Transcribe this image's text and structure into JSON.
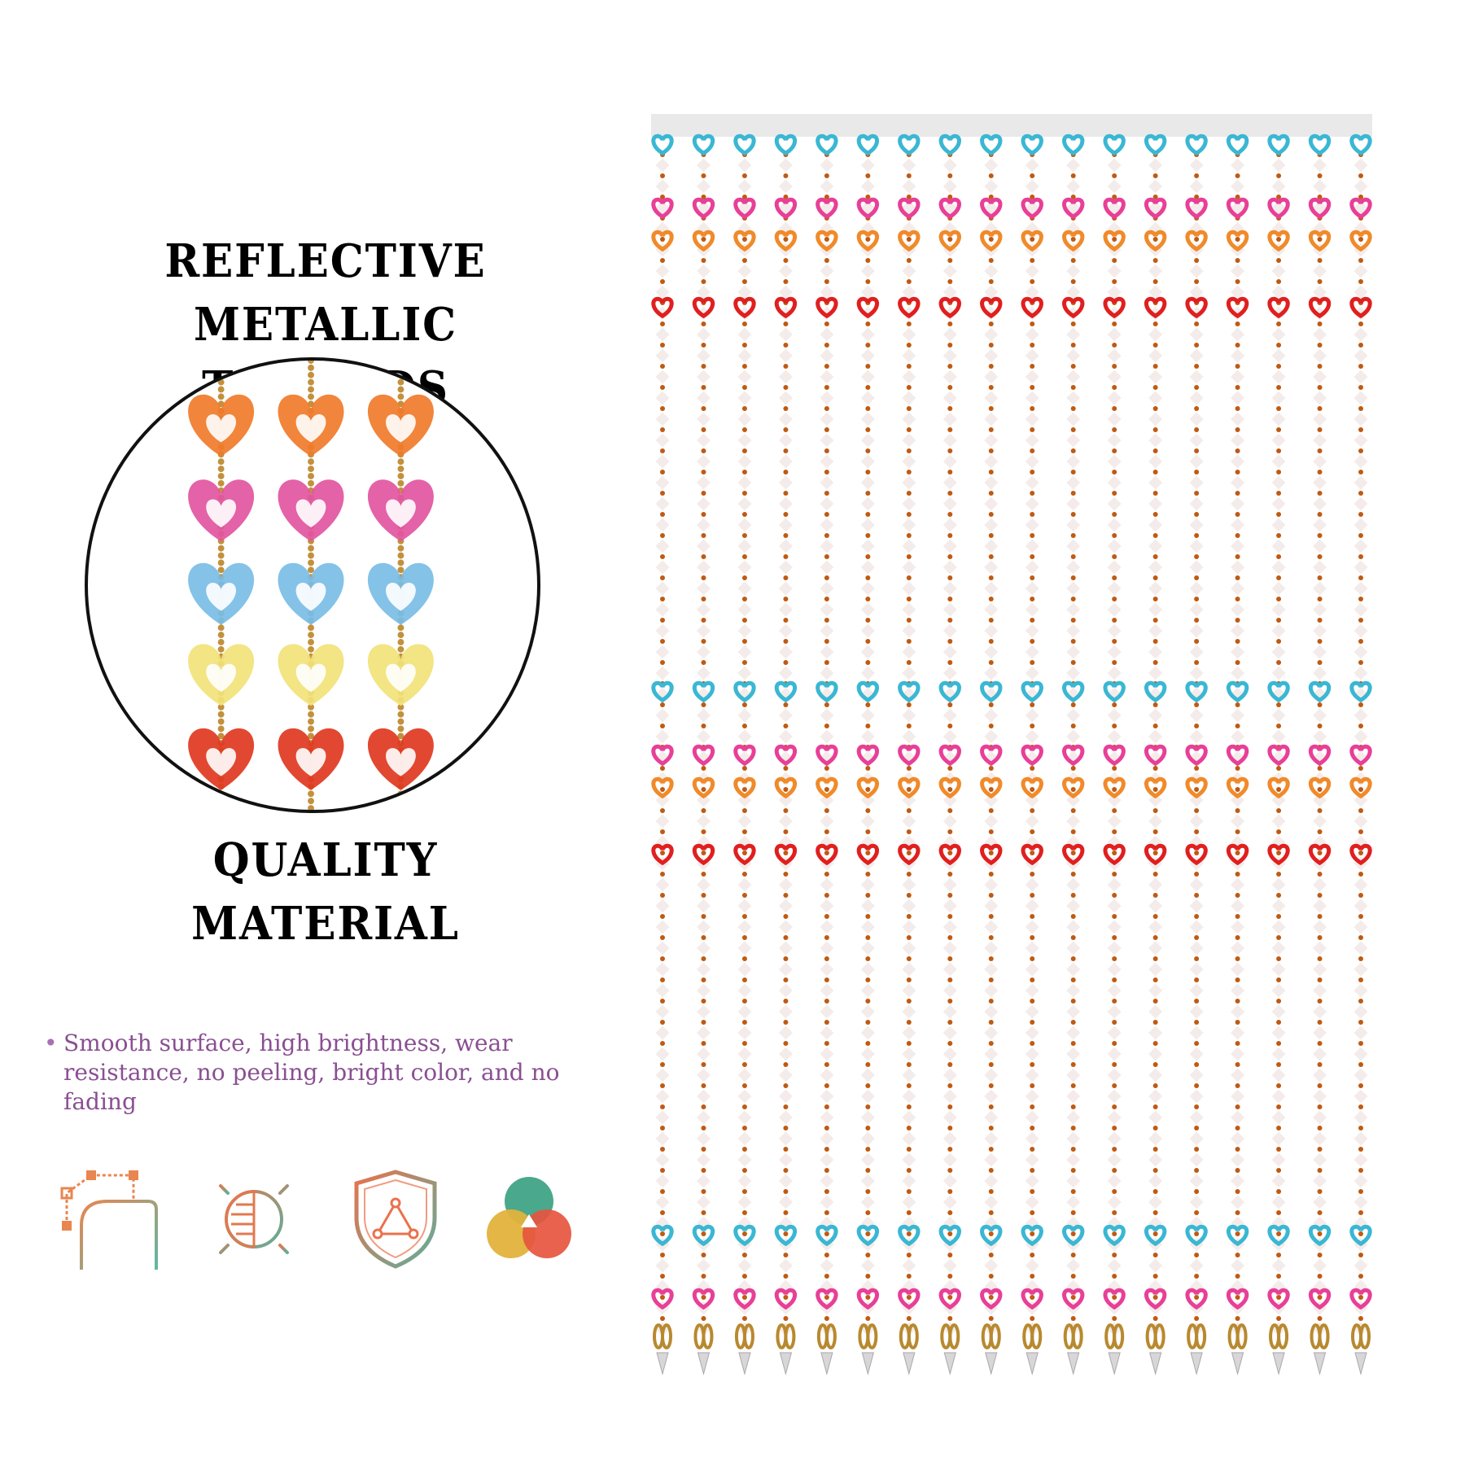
{
  "headings": {
    "top_line1": "REFLECTIVE METALLIC",
    "top_line2": "THREADS",
    "bottom": "QUALITY MATERIAL"
  },
  "detail_photo": {
    "strands": 3,
    "heart_colors": [
      "#f07b2a",
      "#e2559f",
      "#79bde6",
      "#f2e27a",
      "#e0381f"
    ]
  },
  "feature": {
    "bullet": "•",
    "text": "Smooth surface, high brightness, wear resistance, no peeling, bright color, and no fading"
  },
  "icons": [
    {
      "name": "shape-outline-icon",
      "colors": [
        "#e9854f",
        "#5fb9a3"
      ]
    },
    {
      "name": "half-sun-brightness-icon",
      "colors": [
        "#e07a4f",
        "#5fae9b"
      ]
    },
    {
      "name": "shield-triangle-icon",
      "colors": [
        "#e9724c",
        "#5fae9b"
      ]
    },
    {
      "name": "color-circles-icon",
      "colors": [
        "#4aa88c",
        "#e2b23b",
        "#e6553f"
      ]
    }
  ],
  "curtain": {
    "strands": 18,
    "heart_sequence": [
      "#3ab7d3",
      "#e83f97",
      "#f08a2a",
      "#e01f1f"
    ],
    "crystal_color": "#f4ecea",
    "seed_bead_color": "#c05a12",
    "rail_color": "#e9e9e9"
  }
}
